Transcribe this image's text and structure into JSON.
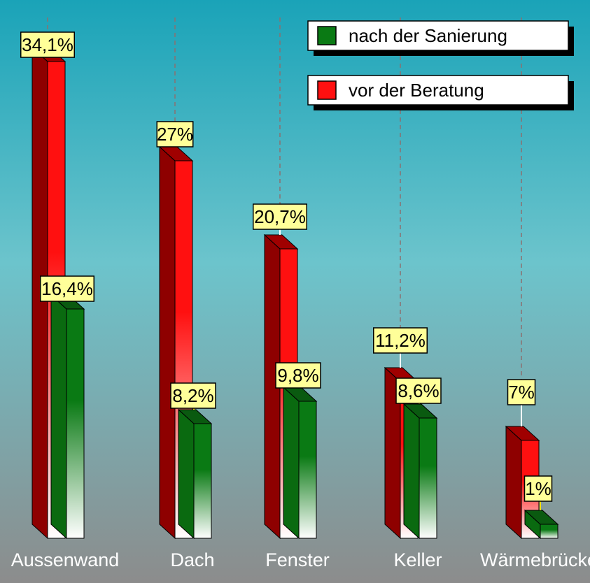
{
  "chart_data": {
    "type": "bar",
    "categories": [
      "Aussenwand",
      "Dach",
      "Fenster",
      "Keller",
      "Wärmebrücke"
    ],
    "series": [
      {
        "name": "vor der Beratung",
        "values": [
          34.1,
          27,
          20.7,
          11.2,
          7
        ],
        "labels": [
          "34,1%",
          "27%",
          "20,7%",
          "11,2%",
          "7%"
        ]
      },
      {
        "name": "nach der Sanierung",
        "values": [
          16.4,
          8.2,
          9.8,
          8.6,
          1
        ],
        "labels": [
          "16,4%",
          "8,2%",
          "9,8%",
          "8,6%",
          "1%"
        ]
      }
    ],
    "ylim": [
      0,
      36
    ],
    "grid": "vertical-dashed",
    "legend_position": "top-right",
    "legend_order": [
      "nach der Sanierung",
      "vor der Beratung"
    ],
    "colors": {
      "vor der Beratung": "#ff1010",
      "nach der Sanierung": "#0a7a14",
      "background_top": "#1aa3b8",
      "background_bottom": "#8c8c8c",
      "label_fill": "#ffff99"
    }
  }
}
